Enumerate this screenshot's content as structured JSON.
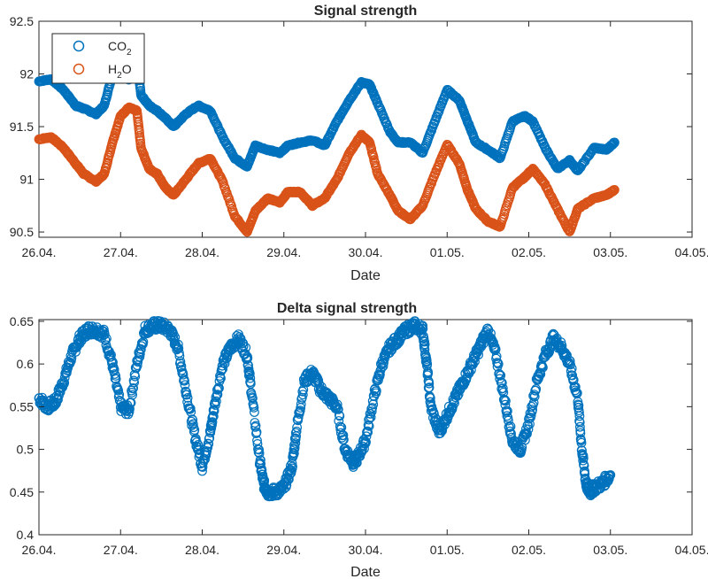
{
  "chart_data": [
    {
      "type": "scatter",
      "title": "Signal strength",
      "xlabel": "Date",
      "ylabel": "",
      "x_ticks": [
        "26.04.",
        "27.04.",
        "28.04.",
        "29.04.",
        "30.04.",
        "01.05.",
        "02.05.",
        "03.05.",
        "04.05."
      ],
      "y_ticks": [
        "90.5",
        "91",
        "91.5",
        "92",
        "92.5"
      ],
      "xlim": [
        0,
        8
      ],
      "ylim": [
        90.45,
        92.5
      ],
      "legend_position": "top-left",
      "marker": "open-circle",
      "series": [
        {
          "name": "CO₂",
          "legend_parts": [
            "CO",
            "2"
          ],
          "color": "#0072BD",
          "x": [
            0.0,
            0.15,
            0.3,
            0.45,
            0.55,
            0.7,
            0.8,
            0.9,
            1.0,
            1.1,
            1.2,
            1.25,
            1.35,
            1.45,
            1.55,
            1.65,
            1.8,
            1.95,
            2.1,
            2.25,
            2.4,
            2.55,
            2.65,
            2.8,
            2.95,
            3.05,
            3.2,
            3.35,
            3.5,
            3.65,
            3.8,
            3.95,
            4.05,
            4.15,
            4.3,
            4.4,
            4.55,
            4.7,
            4.85,
            5.0,
            5.15,
            5.25,
            5.35,
            5.5,
            5.65,
            5.8,
            5.95,
            6.05,
            6.2,
            6.35,
            6.5,
            6.6,
            6.8,
            6.95,
            7.05
          ],
          "y": [
            91.93,
            91.95,
            91.85,
            91.7,
            91.67,
            91.62,
            91.7,
            92.0,
            92.05,
            91.95,
            92.15,
            91.8,
            91.7,
            91.65,
            91.58,
            91.5,
            91.62,
            91.7,
            91.65,
            91.4,
            91.2,
            91.12,
            91.32,
            91.28,
            91.25,
            91.32,
            91.35,
            91.37,
            91.32,
            91.55,
            91.75,
            91.92,
            91.9,
            91.72,
            91.45,
            91.35,
            91.35,
            91.25,
            91.55,
            91.85,
            91.75,
            91.55,
            91.35,
            91.28,
            91.2,
            91.55,
            91.6,
            91.55,
            91.3,
            91.1,
            91.18,
            91.08,
            91.3,
            91.28,
            91.35
          ],
          "ylim": [
            91.05,
            92.2
          ]
        },
        {
          "name": "H₂O",
          "legend_parts": [
            "H",
            "2",
            "O"
          ],
          "color": "#D95319",
          "x": [
            0.0,
            0.15,
            0.3,
            0.45,
            0.55,
            0.7,
            0.8,
            0.9,
            1.0,
            1.1,
            1.2,
            1.25,
            1.35,
            1.45,
            1.55,
            1.65,
            1.8,
            1.95,
            2.1,
            2.25,
            2.4,
            2.55,
            2.65,
            2.8,
            2.95,
            3.05,
            3.2,
            3.35,
            3.5,
            3.65,
            3.8,
            3.95,
            4.05,
            4.15,
            4.3,
            4.4,
            4.55,
            4.7,
            4.85,
            5.0,
            5.15,
            5.25,
            5.35,
            5.5,
            5.65,
            5.8,
            5.95,
            6.05,
            6.2,
            6.35,
            6.5,
            6.6,
            6.8,
            6.95,
            7.05
          ],
          "y": [
            91.38,
            91.4,
            91.3,
            91.15,
            91.05,
            90.98,
            91.05,
            91.35,
            91.6,
            91.68,
            91.65,
            91.3,
            91.1,
            91.05,
            90.92,
            90.85,
            91.0,
            91.15,
            91.2,
            90.98,
            90.65,
            90.5,
            90.7,
            90.82,
            90.78,
            90.88,
            90.88,
            90.75,
            90.82,
            91.0,
            91.25,
            91.42,
            91.35,
            91.05,
            90.85,
            90.7,
            90.62,
            90.75,
            91.05,
            91.33,
            91.15,
            90.9,
            90.72,
            90.6,
            90.55,
            90.92,
            91.02,
            91.1,
            90.95,
            90.72,
            90.5,
            90.72,
            90.82,
            90.85,
            90.9
          ],
          "ylim": [
            90.45,
            91.7
          ]
        }
      ]
    },
    {
      "type": "scatter",
      "title": "Delta signal strength",
      "xlabel": "Date",
      "ylabel": "",
      "x_ticks": [
        "26.04.",
        "27.04.",
        "28.04.",
        "29.04.",
        "30.04.",
        "01.05.",
        "02.05.",
        "03.05.",
        "04.05."
      ],
      "y_ticks": [
        "0.4",
        "0.45",
        "0.5",
        "0.55",
        "0.6",
        "0.65"
      ],
      "xlim": [
        0,
        8
      ],
      "ylim": [
        0.4,
        0.652
      ],
      "marker": "open-circle",
      "series": [
        {
          "color": "#0072BD",
          "x": [
            0.0,
            0.1,
            0.2,
            0.3,
            0.4,
            0.5,
            0.6,
            0.7,
            0.8,
            0.9,
            1.0,
            1.1,
            1.2,
            1.3,
            1.4,
            1.5,
            1.6,
            1.7,
            1.8,
            1.9,
            2.0,
            2.1,
            2.15,
            2.25,
            2.35,
            2.45,
            2.55,
            2.6,
            2.7,
            2.75,
            2.8,
            2.9,
            3.0,
            3.1,
            3.15,
            3.25,
            3.35,
            3.45,
            3.55,
            3.65,
            3.75,
            3.85,
            3.9,
            4.0,
            4.1,
            4.2,
            4.3,
            4.4,
            4.5,
            4.6,
            4.7,
            4.75,
            4.8,
            4.9,
            5.0,
            5.1,
            5.2,
            5.3,
            5.4,
            5.5,
            5.6,
            5.7,
            5.8,
            5.9,
            6.0,
            6.1,
            6.2,
            6.3,
            6.4,
            6.5,
            6.6,
            6.65,
            6.7,
            6.75,
            6.8,
            6.9,
            7.0
          ],
          "y": [
            0.56,
            0.55,
            0.555,
            0.58,
            0.61,
            0.63,
            0.64,
            0.64,
            0.635,
            0.6,
            0.55,
            0.545,
            0.6,
            0.64,
            0.645,
            0.645,
            0.64,
            0.62,
            0.57,
            0.52,
            0.48,
            0.52,
            0.55,
            0.6,
            0.62,
            0.63,
            0.61,
            0.57,
            0.49,
            0.46,
            0.45,
            0.45,
            0.455,
            0.48,
            0.52,
            0.58,
            0.59,
            0.57,
            0.56,
            0.55,
            0.5,
            0.485,
            0.49,
            0.51,
            0.56,
            0.6,
            0.62,
            0.63,
            0.64,
            0.645,
            0.64,
            0.6,
            0.55,
            0.52,
            0.54,
            0.56,
            0.58,
            0.6,
            0.62,
            0.64,
            0.61,
            0.56,
            0.51,
            0.5,
            0.53,
            0.58,
            0.61,
            0.63,
            0.62,
            0.6,
            0.56,
            0.5,
            0.46,
            0.45,
            0.455,
            0.46,
            0.47
          ],
          "ylim": [
            0.44,
            0.65
          ]
        }
      ]
    }
  ]
}
